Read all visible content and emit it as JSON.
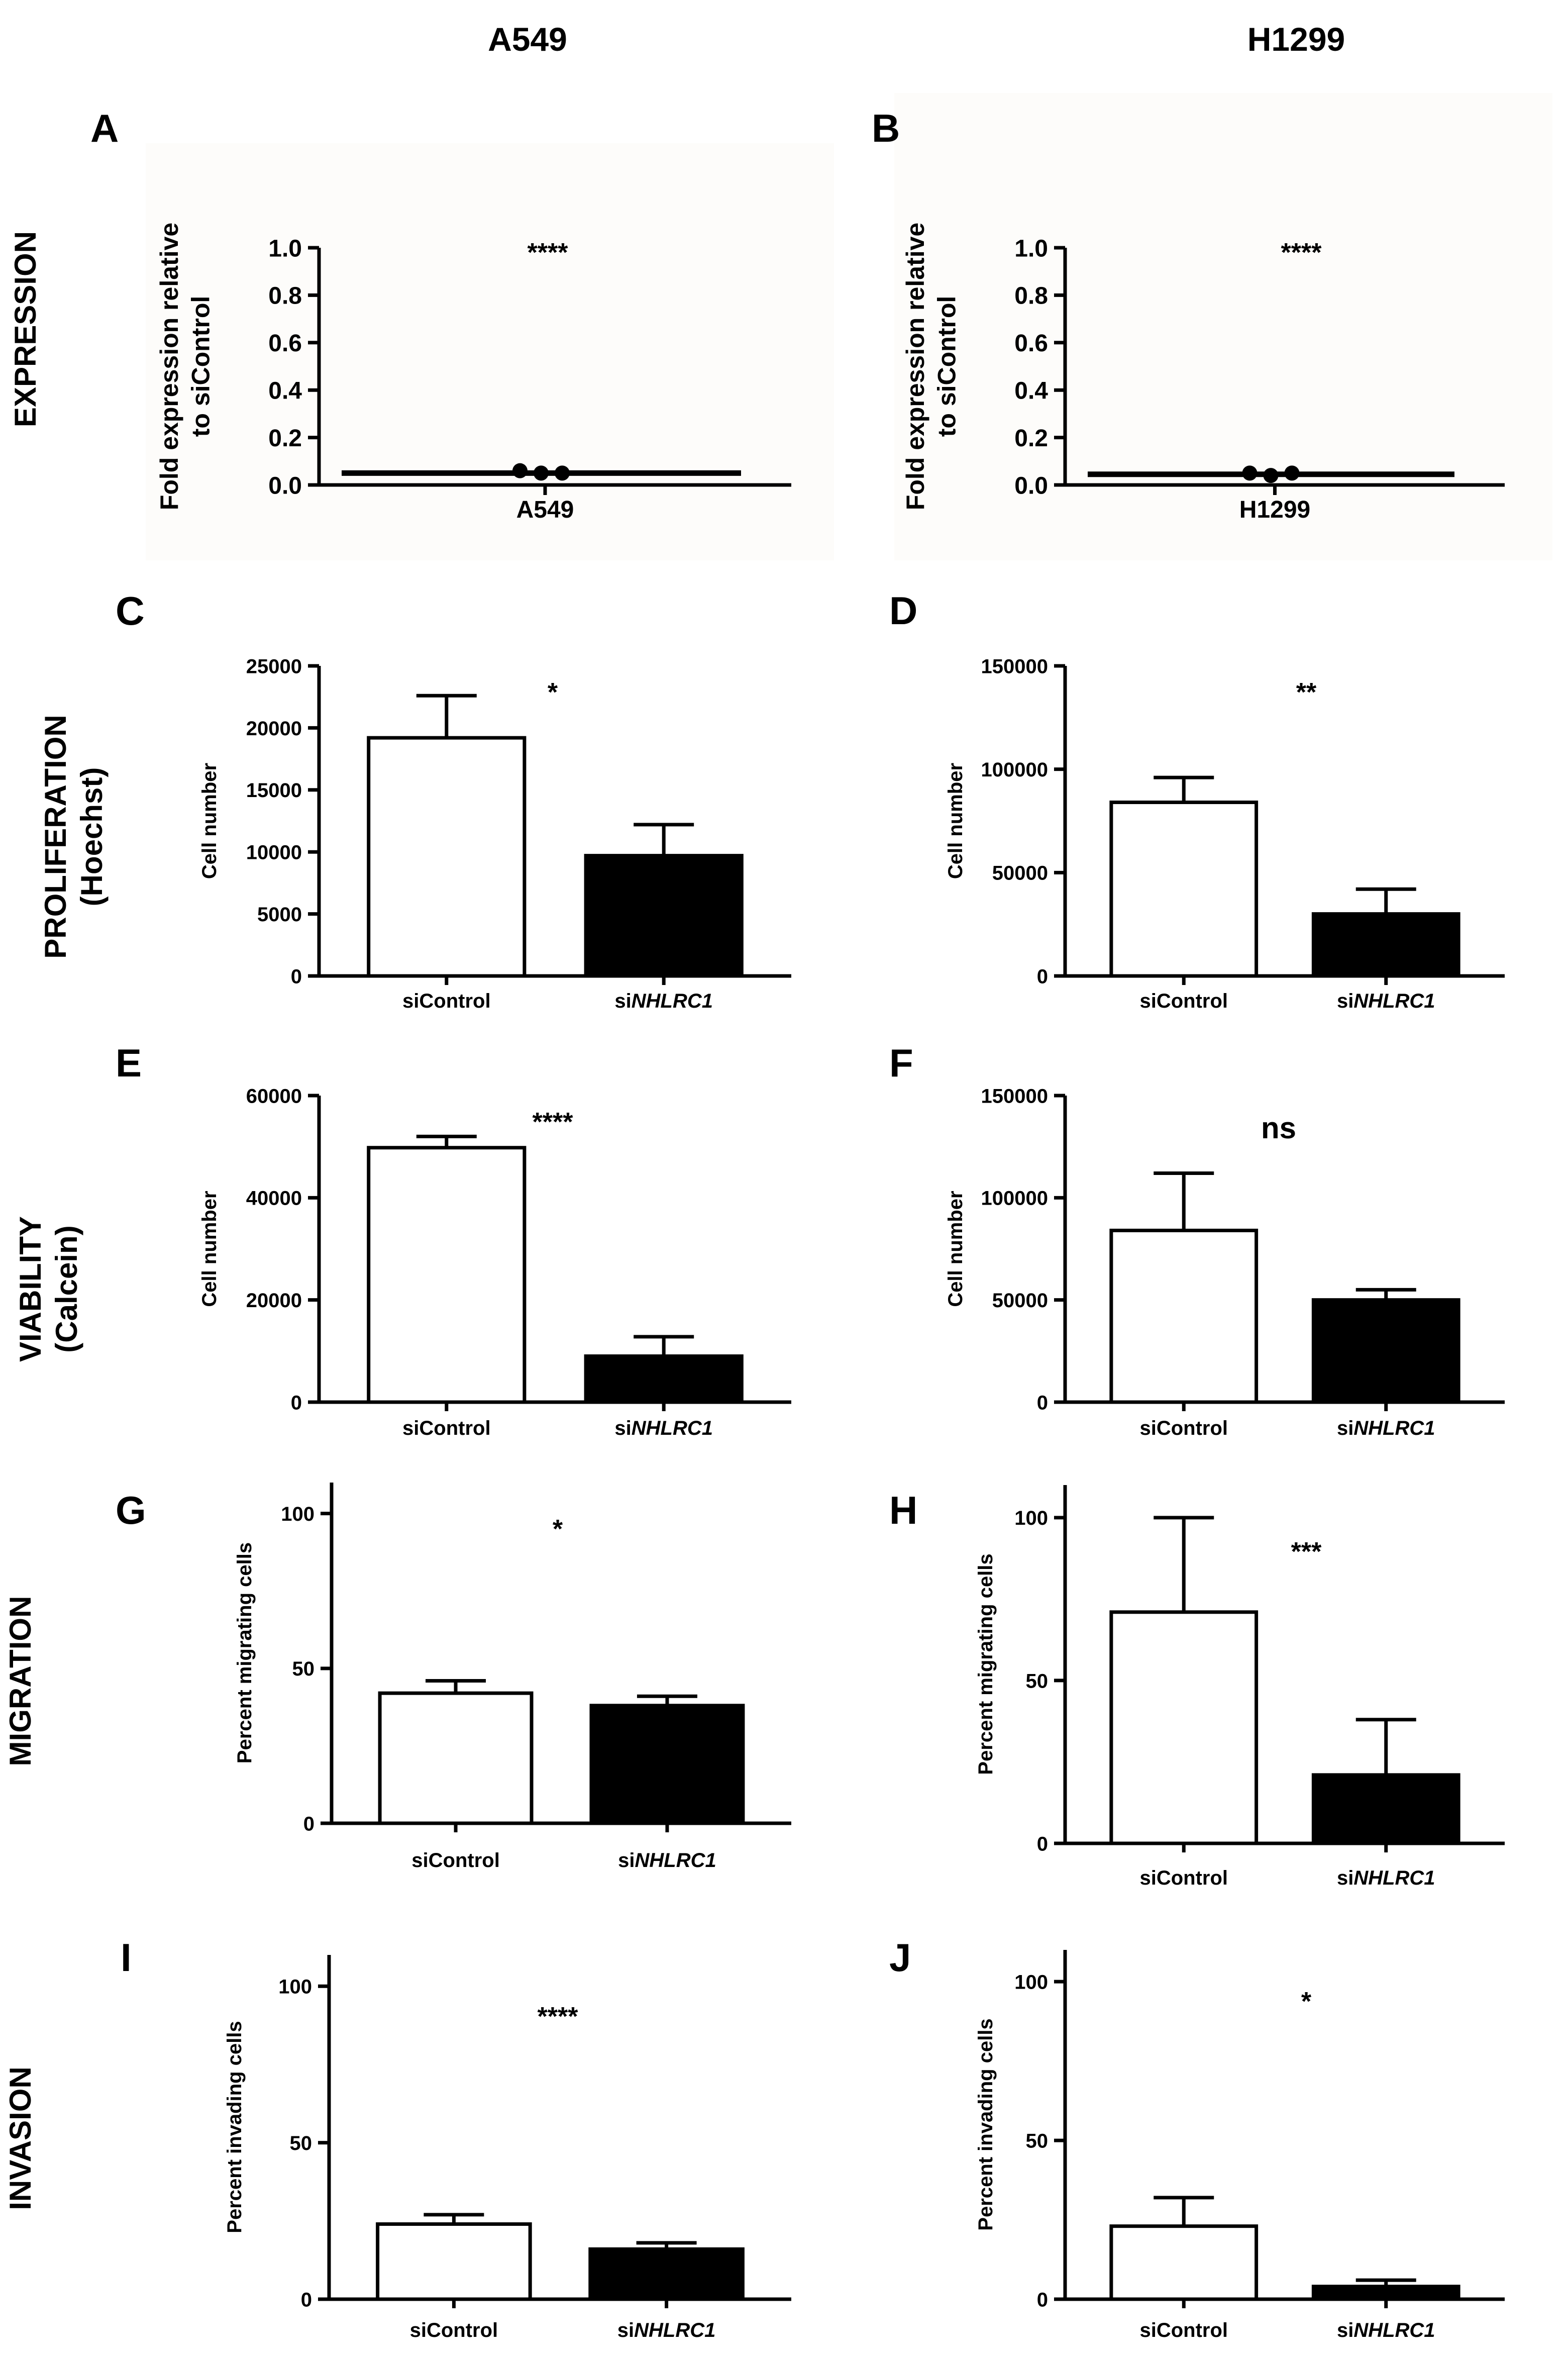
{
  "column_headers": [
    "A549",
    "H1299"
  ],
  "row_labels": [
    {
      "line1": "EXPRESSION",
      "line2": ""
    },
    {
      "line1": "PROLIFERATION",
      "line2": "(Hoechst)"
    },
    {
      "line1": "VIABILITY",
      "line2": "(Calcein)"
    },
    {
      "line1": "MIGRATION",
      "line2": ""
    },
    {
      "line1": "INVASION",
      "line2": ""
    }
  ],
  "colors": {
    "bar_control": "#ffffff",
    "bar_knockdown": "#000000",
    "stroke": "#000000"
  },
  "chart_data": [
    {
      "panel": "A",
      "type": "scatter",
      "ylabel": [
        "Fold expression relative",
        "to siControl"
      ],
      "categories": [
        "A549"
      ],
      "points": [
        0.06,
        0.05,
        0.05
      ],
      "mean": 0.05,
      "ylim": [
        0,
        1.0
      ],
      "yticks": [
        0.0,
        0.2,
        0.4,
        0.6,
        0.8,
        1.0
      ],
      "tick_decimals": 1,
      "significance": "****"
    },
    {
      "panel": "B",
      "type": "scatter",
      "ylabel": [
        "Fold expression relative",
        "to siControl"
      ],
      "categories": [
        "H1299"
      ],
      "points": [
        0.05,
        0.04,
        0.05
      ],
      "mean": 0.045,
      "ylim": [
        0,
        1.0
      ],
      "yticks": [
        0.0,
        0.2,
        0.4,
        0.6,
        0.8,
        1.0
      ],
      "tick_decimals": 1,
      "significance": "****"
    },
    {
      "panel": "C",
      "type": "bar",
      "ylabel": [
        "Cell number"
      ],
      "categories": [
        "siControl",
        "siNHLRC1"
      ],
      "values": [
        19200,
        9700
      ],
      "errors": [
        3400,
        2500
      ],
      "ylim": [
        0,
        25000
      ],
      "yticks": [
        0,
        5000,
        10000,
        15000,
        20000,
        25000
      ],
      "significance": "*"
    },
    {
      "panel": "D",
      "type": "bar",
      "ylabel": [
        "Cell number"
      ],
      "categories": [
        "siControl",
        "siNHLRC1"
      ],
      "values": [
        84000,
        30000
      ],
      "errors": [
        12000,
        12000
      ],
      "ylim": [
        0,
        150000
      ],
      "yticks": [
        0,
        50000,
        100000,
        150000
      ],
      "significance": "**"
    },
    {
      "panel": "E",
      "type": "bar",
      "ylabel": [
        "Cell number"
      ],
      "categories": [
        "siControl",
        "siNHLRC1"
      ],
      "values": [
        49800,
        9000
      ],
      "errors": [
        2200,
        3800
      ],
      "ylim": [
        0,
        60000
      ],
      "yticks": [
        0,
        20000,
        40000,
        60000
      ],
      "significance": "****"
    },
    {
      "panel": "F",
      "type": "bar",
      "ylabel": [
        "Cell number"
      ],
      "categories": [
        "siControl",
        "siNHLRC1"
      ],
      "values": [
        84000,
        50000
      ],
      "errors": [
        28000,
        5000
      ],
      "ylim": [
        0,
        150000
      ],
      "yticks": [
        0,
        50000,
        100000,
        150000
      ],
      "significance": "ns"
    },
    {
      "panel": "G",
      "type": "bar",
      "ylabel": [
        "Percent migrating cells"
      ],
      "categories": [
        "siControl",
        "siNHLRC1"
      ],
      "values": [
        42,
        38
      ],
      "errors": [
        4,
        3
      ],
      "ylim": [
        0,
        110
      ],
      "yticks": [
        0,
        50,
        100
      ],
      "significance": "*"
    },
    {
      "panel": "H",
      "type": "bar",
      "ylabel": [
        "Percent migrating cells"
      ],
      "categories": [
        "siControl",
        "siNHLRC1"
      ],
      "values": [
        71,
        21
      ],
      "errors": [
        29,
        17
      ],
      "ylim": [
        0,
        110
      ],
      "yticks": [
        0,
        50,
        100
      ],
      "significance": "***"
    },
    {
      "panel": "I",
      "type": "bar",
      "ylabel": [
        "Percent invading cells"
      ],
      "categories": [
        "siControl",
        "siNHLRC1"
      ],
      "values": [
        24,
        16
      ],
      "errors": [
        3,
        2
      ],
      "ylim": [
        0,
        110
      ],
      "yticks": [
        0,
        50,
        100
      ],
      "significance": "****"
    },
    {
      "panel": "J",
      "type": "bar",
      "ylabel": [
        "Percent invading cells"
      ],
      "categories": [
        "siControl",
        "siNHLRC1"
      ],
      "values": [
        23,
        4
      ],
      "errors": [
        9,
        2
      ],
      "ylim": [
        0,
        110
      ],
      "yticks": [
        0,
        50,
        100
      ],
      "significance": "*"
    }
  ]
}
